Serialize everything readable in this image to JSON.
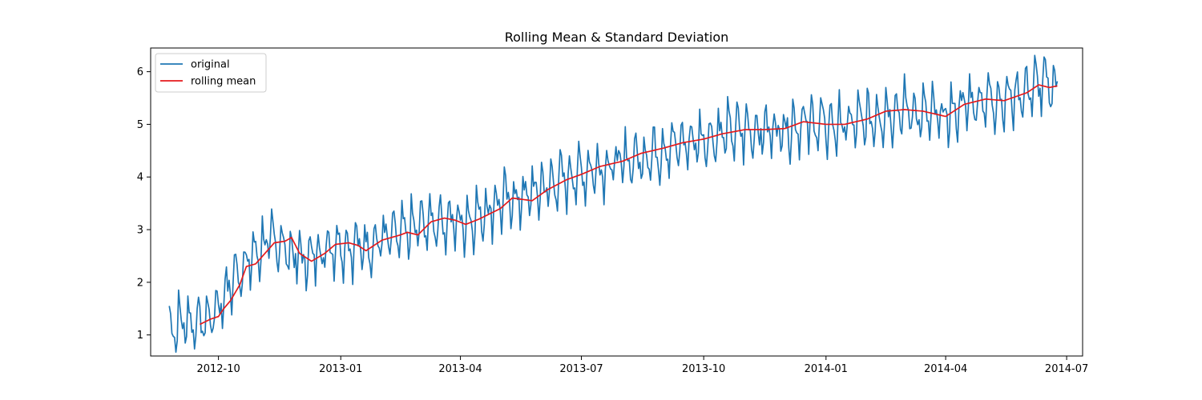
{
  "chart_data": {
    "type": "line",
    "title": "Rolling Mean & Standard Deviation",
    "xlabel": "",
    "ylabel": "",
    "x_ticks": [
      "2012-10",
      "2013-01",
      "2013-04",
      "2013-07",
      "2013-10",
      "2014-01",
      "2014-04",
      "2014-07"
    ],
    "y_ticks": [
      1,
      2,
      3,
      4,
      5,
      6
    ],
    "xlim": [
      "2012-08-11",
      "2014-07-13"
    ],
    "ylim": [
      0.6,
      6.45
    ],
    "grid": false,
    "legend_position": "top-left",
    "colors": {
      "original": "#1f77b4",
      "rolling": "#e41a1c"
    },
    "series": [
      {
        "name": "original",
        "start": "2012-08-25",
        "step_days": 1,
        "trend_points": [
          [
            "2012-08-25",
            1.1
          ],
          [
            "2012-09-05",
            1.3
          ],
          [
            "2012-09-15",
            1.25
          ],
          [
            "2012-09-25",
            1.35
          ],
          [
            "2012-10-05",
            1.75
          ],
          [
            "2012-10-15",
            2.2
          ],
          [
            "2012-10-25",
            2.45
          ],
          [
            "2012-11-05",
            2.75
          ],
          [
            "2012-11-15",
            2.8
          ],
          [
            "2012-11-25",
            2.55
          ],
          [
            "2012-12-05",
            2.45
          ],
          [
            "2012-12-15",
            2.6
          ],
          [
            "2012-12-28",
            2.75
          ],
          [
            "2013-01-10",
            2.7
          ],
          [
            "2013-01-20",
            2.7
          ],
          [
            "2013-02-01",
            2.85
          ],
          [
            "2013-02-15",
            2.9
          ],
          [
            "2013-03-01",
            3.1
          ],
          [
            "2013-03-15",
            3.2
          ],
          [
            "2013-04-01",
            3.15
          ],
          [
            "2013-04-15",
            3.3
          ],
          [
            "2013-05-01",
            3.55
          ],
          [
            "2013-05-15",
            3.6
          ],
          [
            "2013-06-01",
            3.8
          ],
          [
            "2013-06-15",
            3.95
          ],
          [
            "2013-07-01",
            4.1
          ],
          [
            "2013-07-15",
            4.2
          ],
          [
            "2013-08-01",
            4.3
          ],
          [
            "2013-08-15",
            4.4
          ],
          [
            "2013-09-01",
            4.55
          ],
          [
            "2013-09-15",
            4.65
          ],
          [
            "2013-10-01",
            4.75
          ],
          [
            "2013-10-15",
            4.85
          ],
          [
            "2013-11-01",
            4.9
          ],
          [
            "2013-11-15",
            4.9
          ],
          [
            "2013-12-01",
            4.95
          ],
          [
            "2013-12-15",
            5.05
          ],
          [
            "2014-01-01",
            5.0
          ],
          [
            "2014-01-15",
            5.0
          ],
          [
            "2014-02-01",
            5.1
          ],
          [
            "2014-02-15",
            5.25
          ],
          [
            "2014-03-01",
            5.3
          ],
          [
            "2014-03-15",
            5.2
          ],
          [
            "2014-04-01",
            5.15
          ],
          [
            "2014-04-15",
            5.4
          ],
          [
            "2014-05-01",
            5.5
          ],
          [
            "2014-05-15",
            5.5
          ],
          [
            "2014-06-01",
            5.65
          ],
          [
            "2014-06-10",
            5.78
          ],
          [
            "2014-06-24",
            5.72
          ]
        ],
        "weekly_pattern": [
          0.35,
          0.2,
          0.05,
          -0.05,
          -0.15,
          -0.4,
          -0.1
        ]
      },
      {
        "name": "rolling mean",
        "start": "2012-09-17",
        "step_days": 1,
        "trend_points": [
          [
            "2012-09-17",
            1.2
          ],
          [
            "2012-09-25",
            1.3
          ],
          [
            "2012-10-01",
            1.35
          ],
          [
            "2012-10-05",
            1.5
          ],
          [
            "2012-10-10",
            1.65
          ],
          [
            "2012-10-17",
            1.95
          ],
          [
            "2012-10-22",
            2.3
          ],
          [
            "2012-10-29",
            2.35
          ],
          [
            "2012-11-05",
            2.55
          ],
          [
            "2012-11-12",
            2.75
          ],
          [
            "2012-11-20",
            2.78
          ],
          [
            "2012-11-25",
            2.85
          ],
          [
            "2012-12-01",
            2.55
          ],
          [
            "2012-12-10",
            2.4
          ],
          [
            "2012-12-20",
            2.55
          ],
          [
            "2012-12-28",
            2.72
          ],
          [
            "2013-01-07",
            2.75
          ],
          [
            "2013-01-14",
            2.7
          ],
          [
            "2013-01-20",
            2.6
          ],
          [
            "2013-02-01",
            2.8
          ],
          [
            "2013-02-15",
            2.9
          ],
          [
            "2013-02-20",
            2.95
          ],
          [
            "2013-02-28",
            2.9
          ],
          [
            "2013-03-10",
            3.15
          ],
          [
            "2013-03-20",
            3.22
          ],
          [
            "2013-03-28",
            3.18
          ],
          [
            "2013-04-05",
            3.1
          ],
          [
            "2013-04-15",
            3.2
          ],
          [
            "2013-05-01",
            3.4
          ],
          [
            "2013-05-10",
            3.6
          ],
          [
            "2013-05-25",
            3.55
          ],
          [
            "2013-06-05",
            3.75
          ],
          [
            "2013-06-20",
            3.95
          ],
          [
            "2013-07-01",
            4.05
          ],
          [
            "2013-07-15",
            4.2
          ],
          [
            "2013-08-01",
            4.3
          ],
          [
            "2013-08-15",
            4.45
          ],
          [
            "2013-09-01",
            4.55
          ],
          [
            "2013-09-15",
            4.65
          ],
          [
            "2013-10-01",
            4.72
          ],
          [
            "2013-10-15",
            4.82
          ],
          [
            "2013-11-01",
            4.9
          ],
          [
            "2013-11-15",
            4.9
          ],
          [
            "2013-12-01",
            4.92
          ],
          [
            "2013-12-15",
            5.05
          ],
          [
            "2014-01-01",
            5.0
          ],
          [
            "2014-01-15",
            5.0
          ],
          [
            "2014-02-01",
            5.1
          ],
          [
            "2014-02-15",
            5.25
          ],
          [
            "2014-03-01",
            5.28
          ],
          [
            "2014-03-15",
            5.25
          ],
          [
            "2014-04-01",
            5.15
          ],
          [
            "2014-04-15",
            5.38
          ],
          [
            "2014-05-01",
            5.48
          ],
          [
            "2014-05-15",
            5.45
          ],
          [
            "2014-06-01",
            5.6
          ],
          [
            "2014-06-10",
            5.75
          ],
          [
            "2014-06-18",
            5.7
          ],
          [
            "2014-06-24",
            5.73
          ]
        ]
      }
    ]
  }
}
